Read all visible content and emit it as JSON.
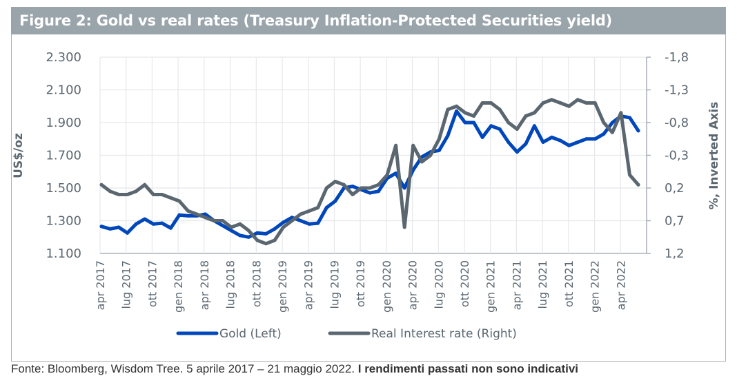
{
  "title": "Figure 2: Gold vs real rates (Treasury Inflation-Protected Securities yield)",
  "source": {
    "text": "Fonte: Bloomberg, Wisdom Tree. 5 aprile 2017 – 21 maggio 2022.",
    "bold_text": "I rendimenti passati non sono indicativi"
  },
  "colors": {
    "title_bg": "#9aa4ab",
    "gold": "#0047bb",
    "real_rate": "#5b6770",
    "grid": "#e6e8ea",
    "axis_text": "#5b6770"
  },
  "chart_data": {
    "type": "line",
    "title": "Figure 2: Gold vs real rates (Treasury Inflation-Protected Securities yield)",
    "ylabel": "US$/oz",
    "y2label": "%, Inverted Axis",
    "ylim": [
      1100,
      2300
    ],
    "y2lim": [
      1.2,
      -1.8
    ],
    "y2_inverted": true,
    "yticks": [
      "2.300",
      "2.100",
      "1.900",
      "1.700",
      "1.500",
      "1.300",
      "1.100"
    ],
    "y2ticks": [
      "-1,8",
      "-1,3",
      "-0,8",
      "-0,3",
      "0,2",
      "0,7",
      "1,2"
    ],
    "xticks": [
      "apr 2017",
      "lug 2017",
      "ott 2017",
      "gen 2018",
      "apr 2018",
      "lug 2018",
      "ott 2018",
      "gen 2019",
      "apr 2019",
      "lug 2019",
      "ott 2019",
      "gen 2020",
      "apr 2020",
      "lug 2020",
      "ott 2020",
      "gen 2021",
      "apr 2021",
      "lug 2021",
      "ott 2021",
      "gen 2022",
      "apr 2022"
    ],
    "grid": true,
    "legend": "bottom",
    "x": [
      "2017-04",
      "2017-05",
      "2017-06",
      "2017-07",
      "2017-08",
      "2017-09",
      "2017-10",
      "2017-11",
      "2017-12",
      "2018-01",
      "2018-02",
      "2018-03",
      "2018-04",
      "2018-05",
      "2018-06",
      "2018-07",
      "2018-08",
      "2018-09",
      "2018-10",
      "2018-11",
      "2018-12",
      "2019-01",
      "2019-02",
      "2019-03",
      "2019-04",
      "2019-05",
      "2019-06",
      "2019-07",
      "2019-08",
      "2019-09",
      "2019-10",
      "2019-11",
      "2019-12",
      "2020-01",
      "2020-02",
      "2020-03a",
      "2020-03b",
      "2020-04",
      "2020-05",
      "2020-06",
      "2020-07",
      "2020-08",
      "2020-09",
      "2020-10",
      "2020-11",
      "2020-12",
      "2021-01",
      "2021-02",
      "2021-03",
      "2021-04",
      "2021-05",
      "2021-06",
      "2021-07",
      "2021-08",
      "2021-09",
      "2021-10",
      "2021-11",
      "2021-12",
      "2022-01",
      "2022-02",
      "2022-03",
      "2022-04",
      "2022-05"
    ],
    "series": [
      {
        "name": "Gold (Left)",
        "axis": "left",
        "values": [
          1265,
          1250,
          1260,
          1225,
          1280,
          1310,
          1280,
          1285,
          1255,
          1335,
          1330,
          1330,
          1340,
          1300,
          1270,
          1240,
          1210,
          1200,
          1225,
          1220,
          1250,
          1290,
          1320,
          1300,
          1280,
          1285,
          1380,
          1420,
          1500,
          1510,
          1490,
          1470,
          1480,
          1560,
          1590,
          1500,
          1610,
          1690,
          1720,
          1730,
          1820,
          1970,
          1900,
          1900,
          1810,
          1880,
          1860,
          1780,
          1720,
          1770,
          1880,
          1780,
          1810,
          1790,
          1760,
          1780,
          1800,
          1800,
          1830,
          1900,
          1940,
          1930,
          1850
        ]
      },
      {
        "name": "Real Interest rate (Right)",
        "axis": "right",
        "values": [
          0.15,
          0.25,
          0.3,
          0.3,
          0.25,
          0.15,
          0.3,
          0.3,
          0.35,
          0.4,
          0.55,
          0.6,
          0.65,
          0.7,
          0.7,
          0.8,
          0.75,
          0.85,
          1.0,
          1.05,
          1.0,
          0.8,
          0.7,
          0.6,
          0.55,
          0.5,
          0.2,
          0.1,
          0.15,
          0.3,
          0.2,
          0.2,
          0.15,
          0.0,
          -0.45,
          0.8,
          -0.45,
          -0.2,
          -0.3,
          -0.55,
          -1.0,
          -1.05,
          -0.95,
          -0.9,
          -1.1,
          -1.1,
          -1.0,
          -0.8,
          -0.7,
          -0.9,
          -0.95,
          -1.1,
          -1.15,
          -1.1,
          -1.05,
          -1.15,
          -1.1,
          -1.1,
          -0.8,
          -0.65,
          -0.95,
          0.0,
          0.15
        ]
      }
    ]
  }
}
